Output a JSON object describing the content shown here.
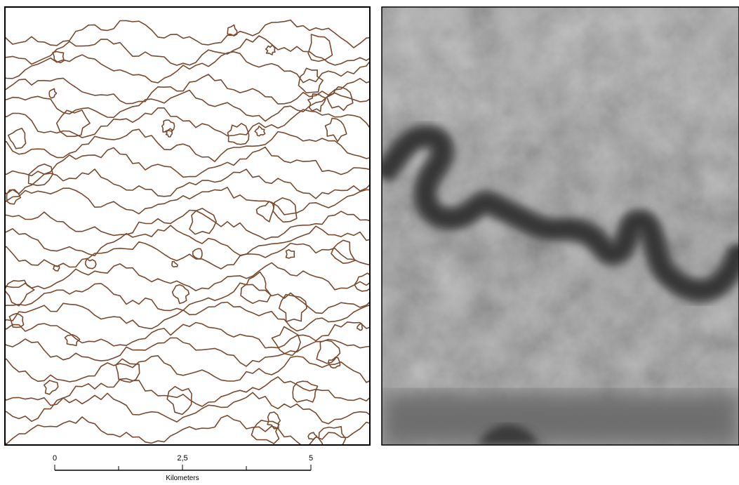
{
  "scale_bar": {
    "ticks": [
      "0",
      "2,5",
      "5"
    ],
    "unit": "Kilometers"
  }
}
